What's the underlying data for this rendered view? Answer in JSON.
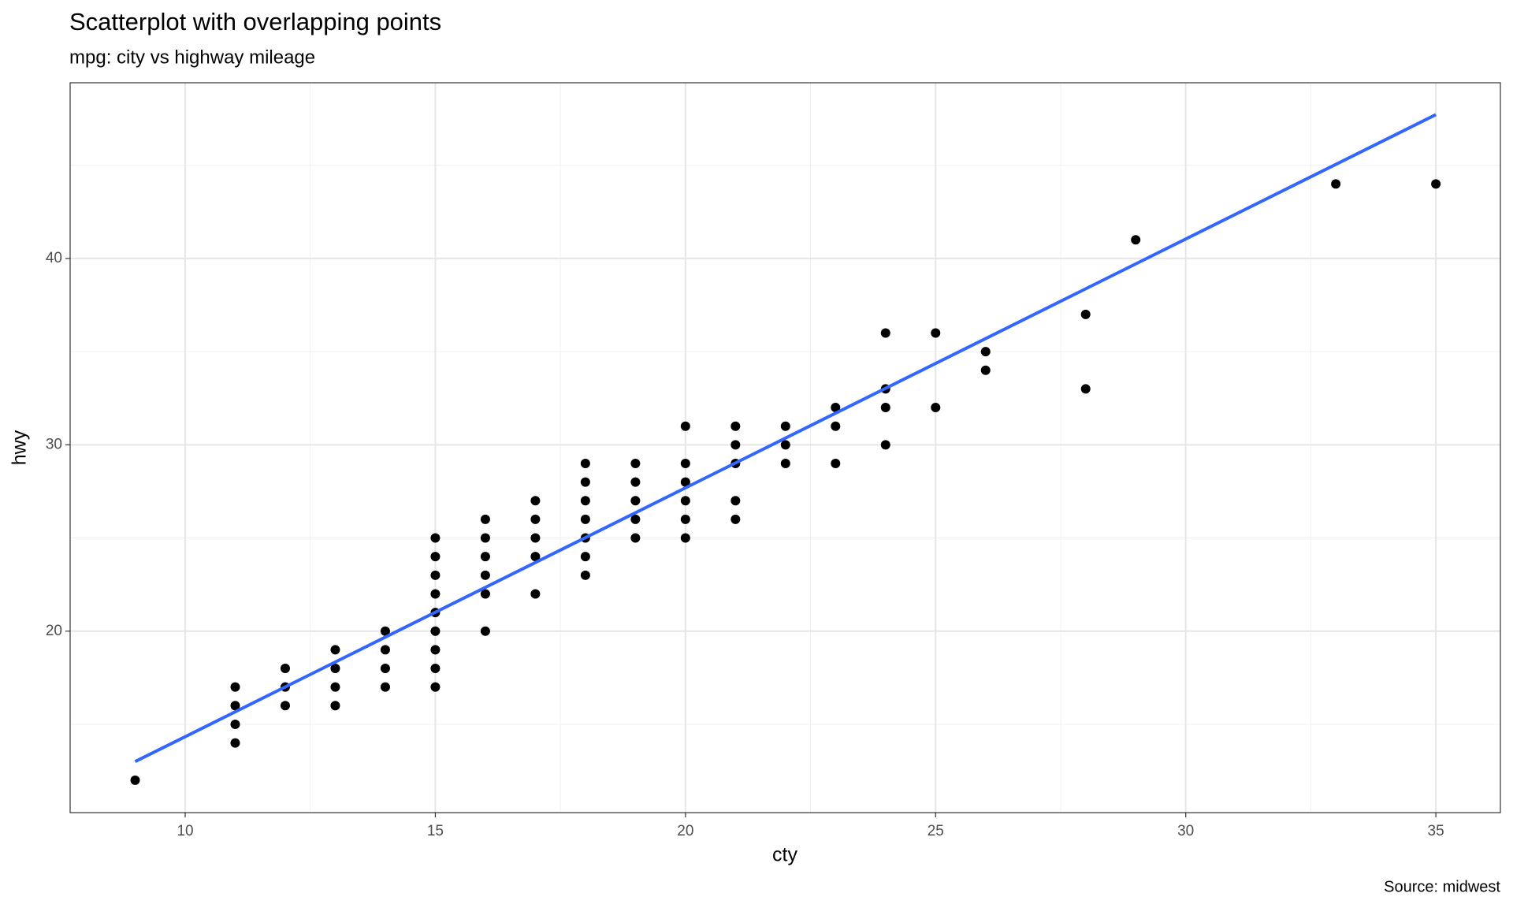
{
  "chart_data": {
    "type": "scatter",
    "title": "Scatterplot with overlapping points",
    "subtitle": "mpg: city vs highway mileage",
    "caption": "Source: midwest",
    "xlabel": "cty",
    "ylabel": "hwy",
    "xlim": [
      7.7,
      36.29
    ],
    "ylim": [
      10.26,
      49.43
    ],
    "xticks": [
      10,
      15,
      20,
      25,
      30,
      35
    ],
    "yticks": [
      20,
      30,
      40
    ],
    "x_minor_grid": [
      7.5,
      12.5,
      17.5,
      22.5,
      27.5,
      32.5
    ],
    "y_minor_grid": [
      15,
      25,
      35,
      45
    ],
    "grid": true,
    "points": {
      "color": "#000000",
      "x": [
        9,
        11,
        11,
        11,
        11,
        12,
        12,
        12,
        13,
        13,
        13,
        13,
        14,
        14,
        14,
        14,
        15,
        15,
        15,
        15,
        15,
        15,
        15,
        15,
        15,
        16,
        16,
        16,
        16,
        16,
        16,
        17,
        17,
        17,
        17,
        17,
        18,
        18,
        18,
        18,
        18,
        18,
        18,
        19,
        19,
        19,
        19,
        19,
        20,
        20,
        20,
        20,
        20,
        20,
        21,
        21,
        21,
        21,
        21,
        22,
        22,
        22,
        23,
        23,
        23,
        24,
        24,
        24,
        24,
        25,
        25,
        26,
        26,
        28,
        28,
        29,
        33,
        35
      ],
      "values": [
        12,
        14,
        15,
        16,
        17,
        16,
        17,
        18,
        16,
        17,
        18,
        19,
        17,
        18,
        19,
        20,
        17,
        18,
        19,
        20,
        21,
        22,
        23,
        24,
        25,
        20,
        22,
        23,
        24,
        25,
        26,
        22,
        24,
        25,
        26,
        27,
        23,
        24,
        25,
        26,
        27,
        28,
        29,
        25,
        26,
        27,
        28,
        29,
        25,
        26,
        27,
        28,
        29,
        31,
        26,
        27,
        29,
        30,
        31,
        29,
        30,
        31,
        29,
        31,
        32,
        30,
        32,
        33,
        36,
        32,
        36,
        34,
        35,
        33,
        37,
        41,
        44,
        44
      ]
    },
    "fit": {
      "color": "#3366ff",
      "x": [
        9,
        35
      ],
      "values": [
        13.0,
        47.72
      ]
    }
  }
}
